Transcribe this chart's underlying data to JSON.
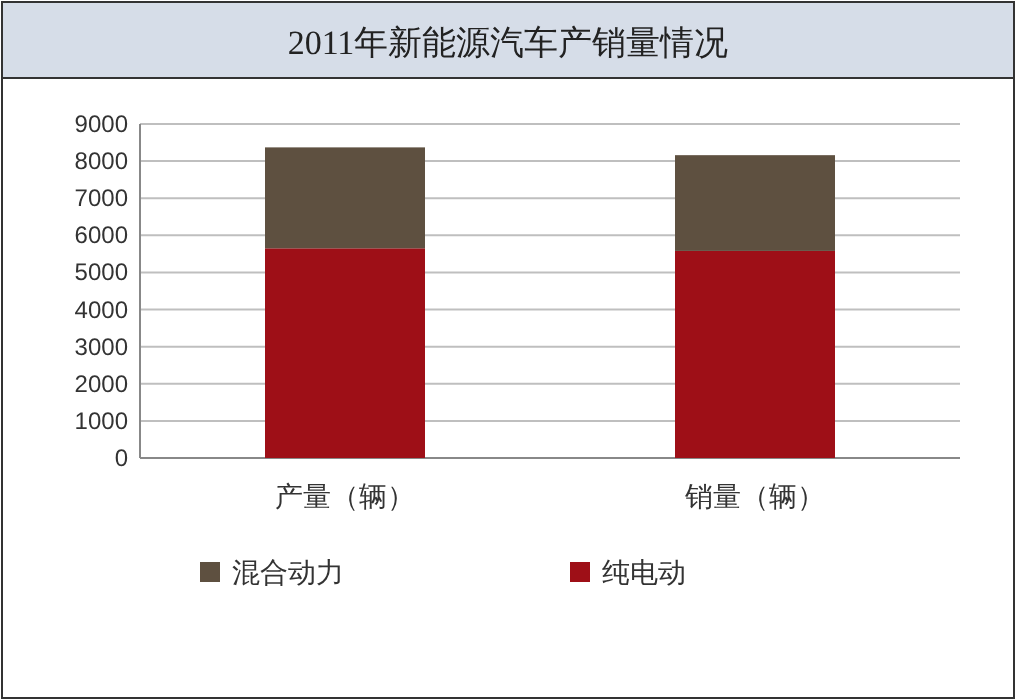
{
  "chart_data": {
    "type": "bar",
    "title": "2011年新能源汽车产销量情况",
    "categories": [
      "产量（辆）",
      "销量（辆）"
    ],
    "stacked": true,
    "series": [
      {
        "name": "纯电动",
        "color": "#9e0f17",
        "values": [
          5650,
          5580
        ]
      },
      {
        "name": "混合动力",
        "color": "#5e5040",
        "values": [
          2720,
          2580
        ]
      }
    ],
    "ylim": [
      0,
      9000
    ],
    "yticks": [
      0,
      1000,
      2000,
      3000,
      4000,
      5000,
      6000,
      7000,
      8000,
      9000
    ],
    "grid": "y",
    "legend": "bottom"
  }
}
